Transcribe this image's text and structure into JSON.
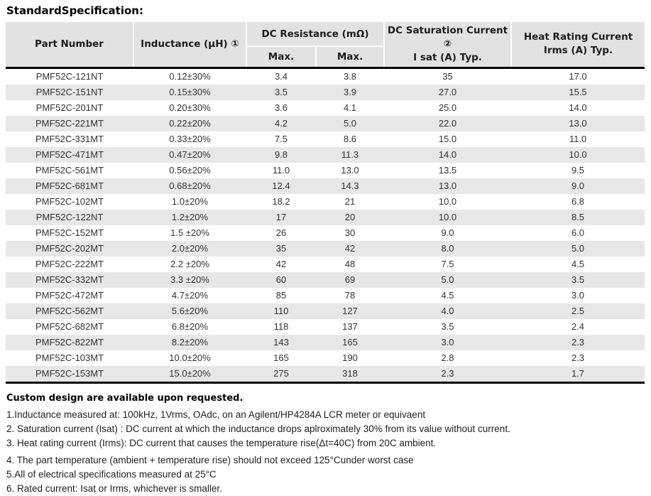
{
  "title": "StandardSpecification:",
  "table": {
    "headers": {
      "part_number": "Part Number",
      "inductance": "Inductance (μH) ①",
      "dc_resistance_group": "DC Resistance (mΩ)",
      "dcr_max_1": "Max.",
      "dcr_max_2": "Max.",
      "saturation_line1": "DC Saturation Current ②",
      "saturation_line2": "I sat (A) Typ.",
      "heat_line1": "Heat Rating Current",
      "heat_line2": "Irms (A) Typ."
    },
    "rows": [
      [
        "PMF52C-121NT",
        "0.12±30%",
        "3.4",
        "3.8",
        "35",
        "17.0"
      ],
      [
        "PMF52C-151NT",
        "0.15±30%",
        "3.5",
        "3.9",
        "27.0",
        "15.5"
      ],
      [
        "PMF52C-201NT",
        "0.20±30%",
        "3.6",
        "4.1",
        "25.0",
        "14.0"
      ],
      [
        "PMF52C-221MT",
        "0.22±20%",
        "4.2",
        "5.0",
        "22.0",
        "13.0"
      ],
      [
        "PMF52C-331MT",
        "0.33±20%",
        "7.5",
        "8.6",
        "15.0",
        "11.0"
      ],
      [
        "PMF52C-471MT",
        "0.47±20%",
        "9.8",
        "11.3",
        "14.0",
        "10.0"
      ],
      [
        "PMF52C-561MT",
        "0.56±20%",
        "11.0",
        "13.0",
        "13.5",
        "9.5"
      ],
      [
        "PMF52C-681MT",
        "0.68±20%",
        "12.4",
        "14.3",
        "13.0",
        "9.0"
      ],
      [
        "PMF52C-102MT",
        "1.0±20%",
        "18.2",
        "21",
        "10.0",
        "6.8"
      ],
      [
        "PMF52C-122NT",
        "1.2±20%",
        "17",
        "20",
        "10.0",
        "8.5"
      ],
      [
        "PMF52C-152MT",
        "1.5 ±20%",
        "26",
        "30",
        "9.0",
        "6.0"
      ],
      [
        "PMF52C-202MT",
        "2.0±20%",
        "35",
        "42",
        "8.0",
        "5.0"
      ],
      [
        "PMF52C-222MT",
        "2.2 ±20%",
        "42",
        "48",
        "7.5",
        "4.5"
      ],
      [
        "PMF52C-332MT",
        "3.3 ±20%",
        "60",
        "69",
        "5.0",
        "3.5"
      ],
      [
        "PMF52C-472MT",
        "4.7±20%",
        "85",
        "78",
        "4.5",
        "3.0"
      ],
      [
        "PMF52C-562MT",
        "5.6±20%",
        "110",
        "127",
        "4.0",
        "2.5"
      ],
      [
        "PMF52C-682MT",
        "6.8±20%",
        "118",
        "137",
        "3.5",
        "2.4"
      ],
      [
        "PMF52C-822MT",
        "8.2±20%",
        "143",
        "165",
        "3.0",
        "2.3"
      ],
      [
        "PMF52C-103MT",
        "10.0±20%",
        "165",
        "190",
        "2.8",
        "2.3"
      ],
      [
        "PMF52C-153MT",
        "15.0±20%",
        "275",
        "318",
        "2.3",
        "1.7"
      ]
    ]
  },
  "notes": {
    "custom": "Custom design are available upon requested.",
    "items": [
      "1.Inductance measured at: 100kHz, 1Vrms, OAdc, on an Agilent/HP4284A LCR meter or equivaent",
      "2. Saturation current (Isat) : DC current at which the inductance drops aplroximately 30% from its value without current.",
      "3. Heat rating current (Irms): DC current that causes the temperature rise(Δt=40C) from 20C ambient.",
      "4. The part temperature (ambient + temperature rise) should not exceed 125°Cunder worst case",
      "5.All of electrical specifications measured at 25°C",
      "6. Rated current: Isat or Irms, whichever is smaller."
    ]
  },
  "colors": {
    "header_bg": "#e2e2e2",
    "row_alt_bg": "#e7e7e7",
    "table_rule": "#000000"
  }
}
